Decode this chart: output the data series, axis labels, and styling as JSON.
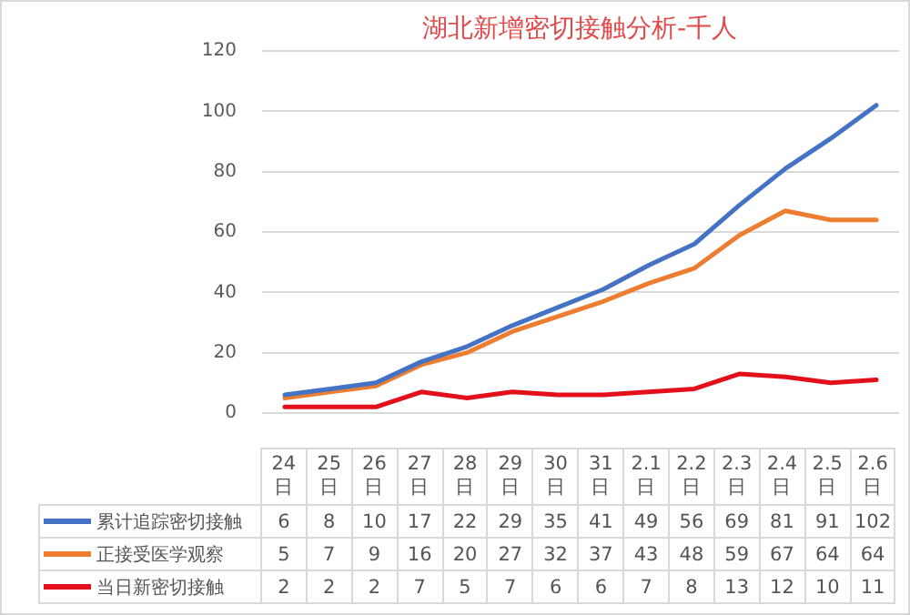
{
  "chart_data": {
    "type": "line",
    "title": "湖北新增密切接触分析-千人",
    "categories": [
      "24日",
      "25日",
      "26日",
      "27日",
      "28日",
      "29日",
      "30日",
      "31日",
      "2.1日",
      "2.2日",
      "2.3日",
      "2.4日",
      "2.5日",
      "2.6日"
    ],
    "series": [
      {
        "name": "累计追踪密切接触",
        "color": "#4472c4",
        "values": [
          6,
          8,
          10,
          17,
          22,
          29,
          35,
          41,
          49,
          56,
          69,
          81,
          91,
          102
        ]
      },
      {
        "name": "正接受医学观察",
        "color": "#ed7d31",
        "values": [
          5,
          7,
          9,
          16,
          20,
          27,
          32,
          37,
          43,
          48,
          59,
          67,
          64,
          64
        ]
      },
      {
        "name": "当日新密切接触",
        "color": "#e3101b",
        "values": [
          2,
          2,
          2,
          7,
          5,
          7,
          6,
          6,
          7,
          8,
          13,
          12,
          10,
          11
        ]
      }
    ],
    "ylim": [
      0,
      120
    ],
    "yticks": [
      0,
      20,
      40,
      60,
      80,
      100,
      120
    ],
    "grid": "y",
    "legend": "bottom",
    "data_labels": true,
    "marker": "none",
    "line_style": "solid"
  }
}
